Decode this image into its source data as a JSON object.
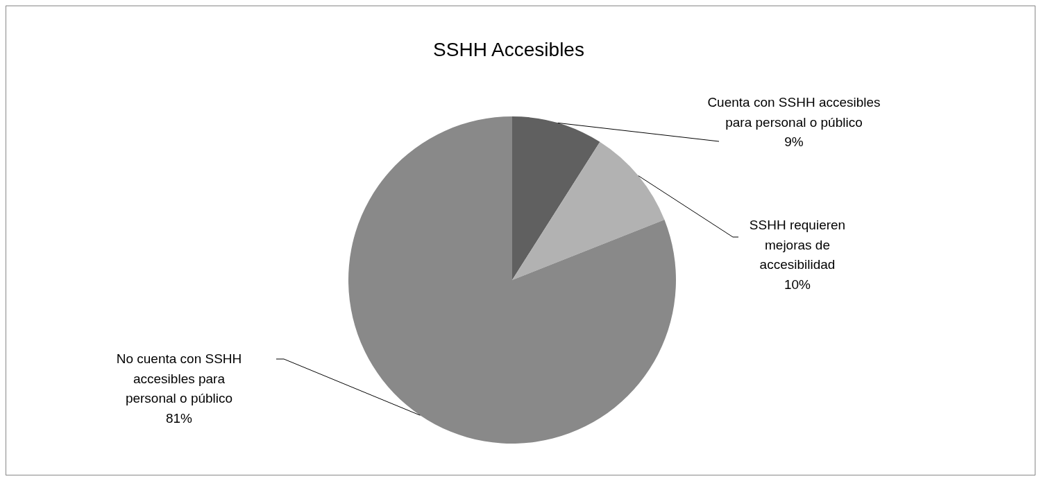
{
  "chart_data": {
    "type": "pie",
    "title": "SSHH Accesibles",
    "categories": [
      "Cuenta con SSHH accesibles para personal o público",
      "SSHH requieren mejoras de accesibilidad",
      "No cuenta con SSHH accesibles para personal o público"
    ],
    "values": [
      9,
      10,
      81
    ],
    "colors": [
      "#606060",
      "#b2b2b2",
      "#898989"
    ],
    "value_labels": [
      "9%",
      "10%",
      "81%"
    ]
  }
}
